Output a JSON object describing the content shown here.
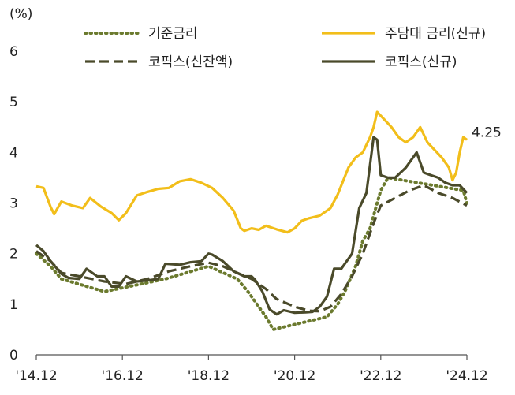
{
  "chart_data": {
    "type": "line",
    "unit_label": "(%)",
    "ylim": [
      0,
      6
    ],
    "yticks": [
      0,
      1,
      2,
      3,
      4,
      5,
      6
    ],
    "xlim": [
      2014.917,
      2024.917
    ],
    "xticks": [
      {
        "x": 2014.917,
        "label": "'14.12"
      },
      {
        "x": 2016.917,
        "label": "'16.12"
      },
      {
        "x": 2018.917,
        "label": "'18.12"
      },
      {
        "x": 2020.917,
        "label": "'20.12"
      },
      {
        "x": 2022.917,
        "label": "'22.12"
      },
      {
        "x": 2024.917,
        "label": "'24.12"
      }
    ],
    "grid": false,
    "legend_position": "top",
    "annotation": {
      "text": "4.25",
      "series": 1,
      "x": 2024.917,
      "y": 4.25
    },
    "series": [
      {
        "name": "기준금리",
        "color": "#6b7a2e",
        "style": "dotted",
        "points": [
          [
            2014.917,
            2.0
          ],
          [
            2015.25,
            1.75
          ],
          [
            2015.5,
            1.5
          ],
          [
            2016.5,
            1.25
          ],
          [
            2017.917,
            1.5
          ],
          [
            2018.917,
            1.75
          ],
          [
            2019.583,
            1.5
          ],
          [
            2019.833,
            1.25
          ],
          [
            2020.25,
            0.75
          ],
          [
            2020.417,
            0.5
          ],
          [
            2021.667,
            0.75
          ],
          [
            2021.917,
            1.0
          ],
          [
            2022.083,
            1.25
          ],
          [
            2022.333,
            1.75
          ],
          [
            2022.5,
            2.25
          ],
          [
            2022.667,
            2.5
          ],
          [
            2022.833,
            3.0
          ],
          [
            2022.917,
            3.25
          ],
          [
            2023.083,
            3.5
          ],
          [
            2024.833,
            3.25
          ],
          [
            2024.917,
            3.0
          ]
        ]
      },
      {
        "name": "주담대 금리(신규)",
        "color": "#f2be1a",
        "style": "solid",
        "points": [
          [
            2014.917,
            3.33
          ],
          [
            2015.083,
            3.3
          ],
          [
            2015.25,
            2.92
          ],
          [
            2015.333,
            2.78
          ],
          [
            2015.5,
            3.03
          ],
          [
            2015.75,
            2.95
          ],
          [
            2016.0,
            2.9
          ],
          [
            2016.167,
            3.1
          ],
          [
            2016.417,
            2.93
          ],
          [
            2016.667,
            2.8
          ],
          [
            2016.833,
            2.66
          ],
          [
            2017.0,
            2.8
          ],
          [
            2017.25,
            3.15
          ],
          [
            2017.5,
            3.22
          ],
          [
            2017.75,
            3.28
          ],
          [
            2018.0,
            3.3
          ],
          [
            2018.25,
            3.43
          ],
          [
            2018.5,
            3.47
          ],
          [
            2018.75,
            3.4
          ],
          [
            2019.0,
            3.3
          ],
          [
            2019.25,
            3.1
          ],
          [
            2019.5,
            2.85
          ],
          [
            2019.667,
            2.5
          ],
          [
            2019.75,
            2.45
          ],
          [
            2019.917,
            2.5
          ],
          [
            2020.083,
            2.47
          ],
          [
            2020.25,
            2.55
          ],
          [
            2020.5,
            2.48
          ],
          [
            2020.75,
            2.42
          ],
          [
            2020.917,
            2.5
          ],
          [
            2021.083,
            2.65
          ],
          [
            2021.25,
            2.7
          ],
          [
            2021.5,
            2.75
          ],
          [
            2021.75,
            2.9
          ],
          [
            2021.917,
            3.17
          ],
          [
            2022.167,
            3.7
          ],
          [
            2022.333,
            3.9
          ],
          [
            2022.5,
            4.0
          ],
          [
            2022.667,
            4.3
          ],
          [
            2022.75,
            4.5
          ],
          [
            2022.833,
            4.8
          ],
          [
            2023.0,
            4.65
          ],
          [
            2023.167,
            4.5
          ],
          [
            2023.333,
            4.3
          ],
          [
            2023.5,
            4.2
          ],
          [
            2023.667,
            4.3
          ],
          [
            2023.833,
            4.5
          ],
          [
            2024.0,
            4.2
          ],
          [
            2024.167,
            4.05
          ],
          [
            2024.333,
            3.9
          ],
          [
            2024.5,
            3.7
          ],
          [
            2024.583,
            3.45
          ],
          [
            2024.667,
            3.6
          ],
          [
            2024.75,
            4.0
          ],
          [
            2024.833,
            4.3
          ],
          [
            2024.917,
            4.25
          ]
        ]
      },
      {
        "name": "코픽스(신잔액)",
        "color": "#4a4a2a",
        "style": "dashed",
        "points": [
          [
            2014.917,
            2.05
          ],
          [
            2015.25,
            1.85
          ],
          [
            2015.5,
            1.62
          ],
          [
            2015.917,
            1.55
          ],
          [
            2016.5,
            1.45
          ],
          [
            2017.0,
            1.4
          ],
          [
            2017.5,
            1.5
          ],
          [
            2018.0,
            1.65
          ],
          [
            2018.5,
            1.75
          ],
          [
            2018.917,
            1.82
          ],
          [
            2019.25,
            1.75
          ],
          [
            2019.5,
            1.65
          ],
          [
            2019.917,
            1.5
          ],
          [
            2020.25,
            1.3
          ],
          [
            2020.5,
            1.1
          ],
          [
            2020.917,
            0.95
          ],
          [
            2021.25,
            0.87
          ],
          [
            2021.5,
            0.86
          ],
          [
            2021.75,
            0.95
          ],
          [
            2022.0,
            1.2
          ],
          [
            2022.25,
            1.55
          ],
          [
            2022.5,
            2.0
          ],
          [
            2022.75,
            2.6
          ],
          [
            2022.917,
            2.95
          ],
          [
            2023.25,
            3.1
          ],
          [
            2023.583,
            3.25
          ],
          [
            2023.917,
            3.35
          ],
          [
            2024.25,
            3.2
          ],
          [
            2024.583,
            3.1
          ],
          [
            2024.917,
            2.95
          ]
        ]
      },
      {
        "name": "코픽스(신규)",
        "color": "#4a4a2a",
        "style": "solid",
        "points": [
          [
            2014.917,
            2.17
          ],
          [
            2015.083,
            2.05
          ],
          [
            2015.25,
            1.85
          ],
          [
            2015.5,
            1.6
          ],
          [
            2015.667,
            1.52
          ],
          [
            2015.917,
            1.5
          ],
          [
            2016.083,
            1.7
          ],
          [
            2016.333,
            1.55
          ],
          [
            2016.5,
            1.55
          ],
          [
            2016.667,
            1.35
          ],
          [
            2016.833,
            1.35
          ],
          [
            2017.0,
            1.55
          ],
          [
            2017.25,
            1.45
          ],
          [
            2017.5,
            1.47
          ],
          [
            2017.75,
            1.5
          ],
          [
            2017.917,
            1.8
          ],
          [
            2018.25,
            1.78
          ],
          [
            2018.5,
            1.83
          ],
          [
            2018.75,
            1.85
          ],
          [
            2018.917,
            2.0
          ],
          [
            2019.0,
            1.98
          ],
          [
            2019.25,
            1.85
          ],
          [
            2019.5,
            1.65
          ],
          [
            2019.75,
            1.55
          ],
          [
            2019.917,
            1.55
          ],
          [
            2020.0,
            1.48
          ],
          [
            2020.167,
            1.25
          ],
          [
            2020.333,
            0.9
          ],
          [
            2020.5,
            0.8
          ],
          [
            2020.667,
            0.88
          ],
          [
            2020.917,
            0.83
          ],
          [
            2021.167,
            0.84
          ],
          [
            2021.333,
            0.85
          ],
          [
            2021.5,
            0.95
          ],
          [
            2021.667,
            1.15
          ],
          [
            2021.833,
            1.7
          ],
          [
            2022.0,
            1.7
          ],
          [
            2022.25,
            2.0
          ],
          [
            2022.417,
            2.9
          ],
          [
            2022.583,
            3.2
          ],
          [
            2022.75,
            4.3
          ],
          [
            2022.833,
            4.25
          ],
          [
            2022.917,
            3.55
          ],
          [
            2023.083,
            3.5
          ],
          [
            2023.25,
            3.5
          ],
          [
            2023.5,
            3.7
          ],
          [
            2023.75,
            4.0
          ],
          [
            2023.917,
            3.6
          ],
          [
            2024.083,
            3.55
          ],
          [
            2024.25,
            3.5
          ],
          [
            2024.417,
            3.4
          ],
          [
            2024.583,
            3.35
          ],
          [
            2024.75,
            3.35
          ],
          [
            2024.917,
            3.2
          ]
        ]
      }
    ]
  }
}
